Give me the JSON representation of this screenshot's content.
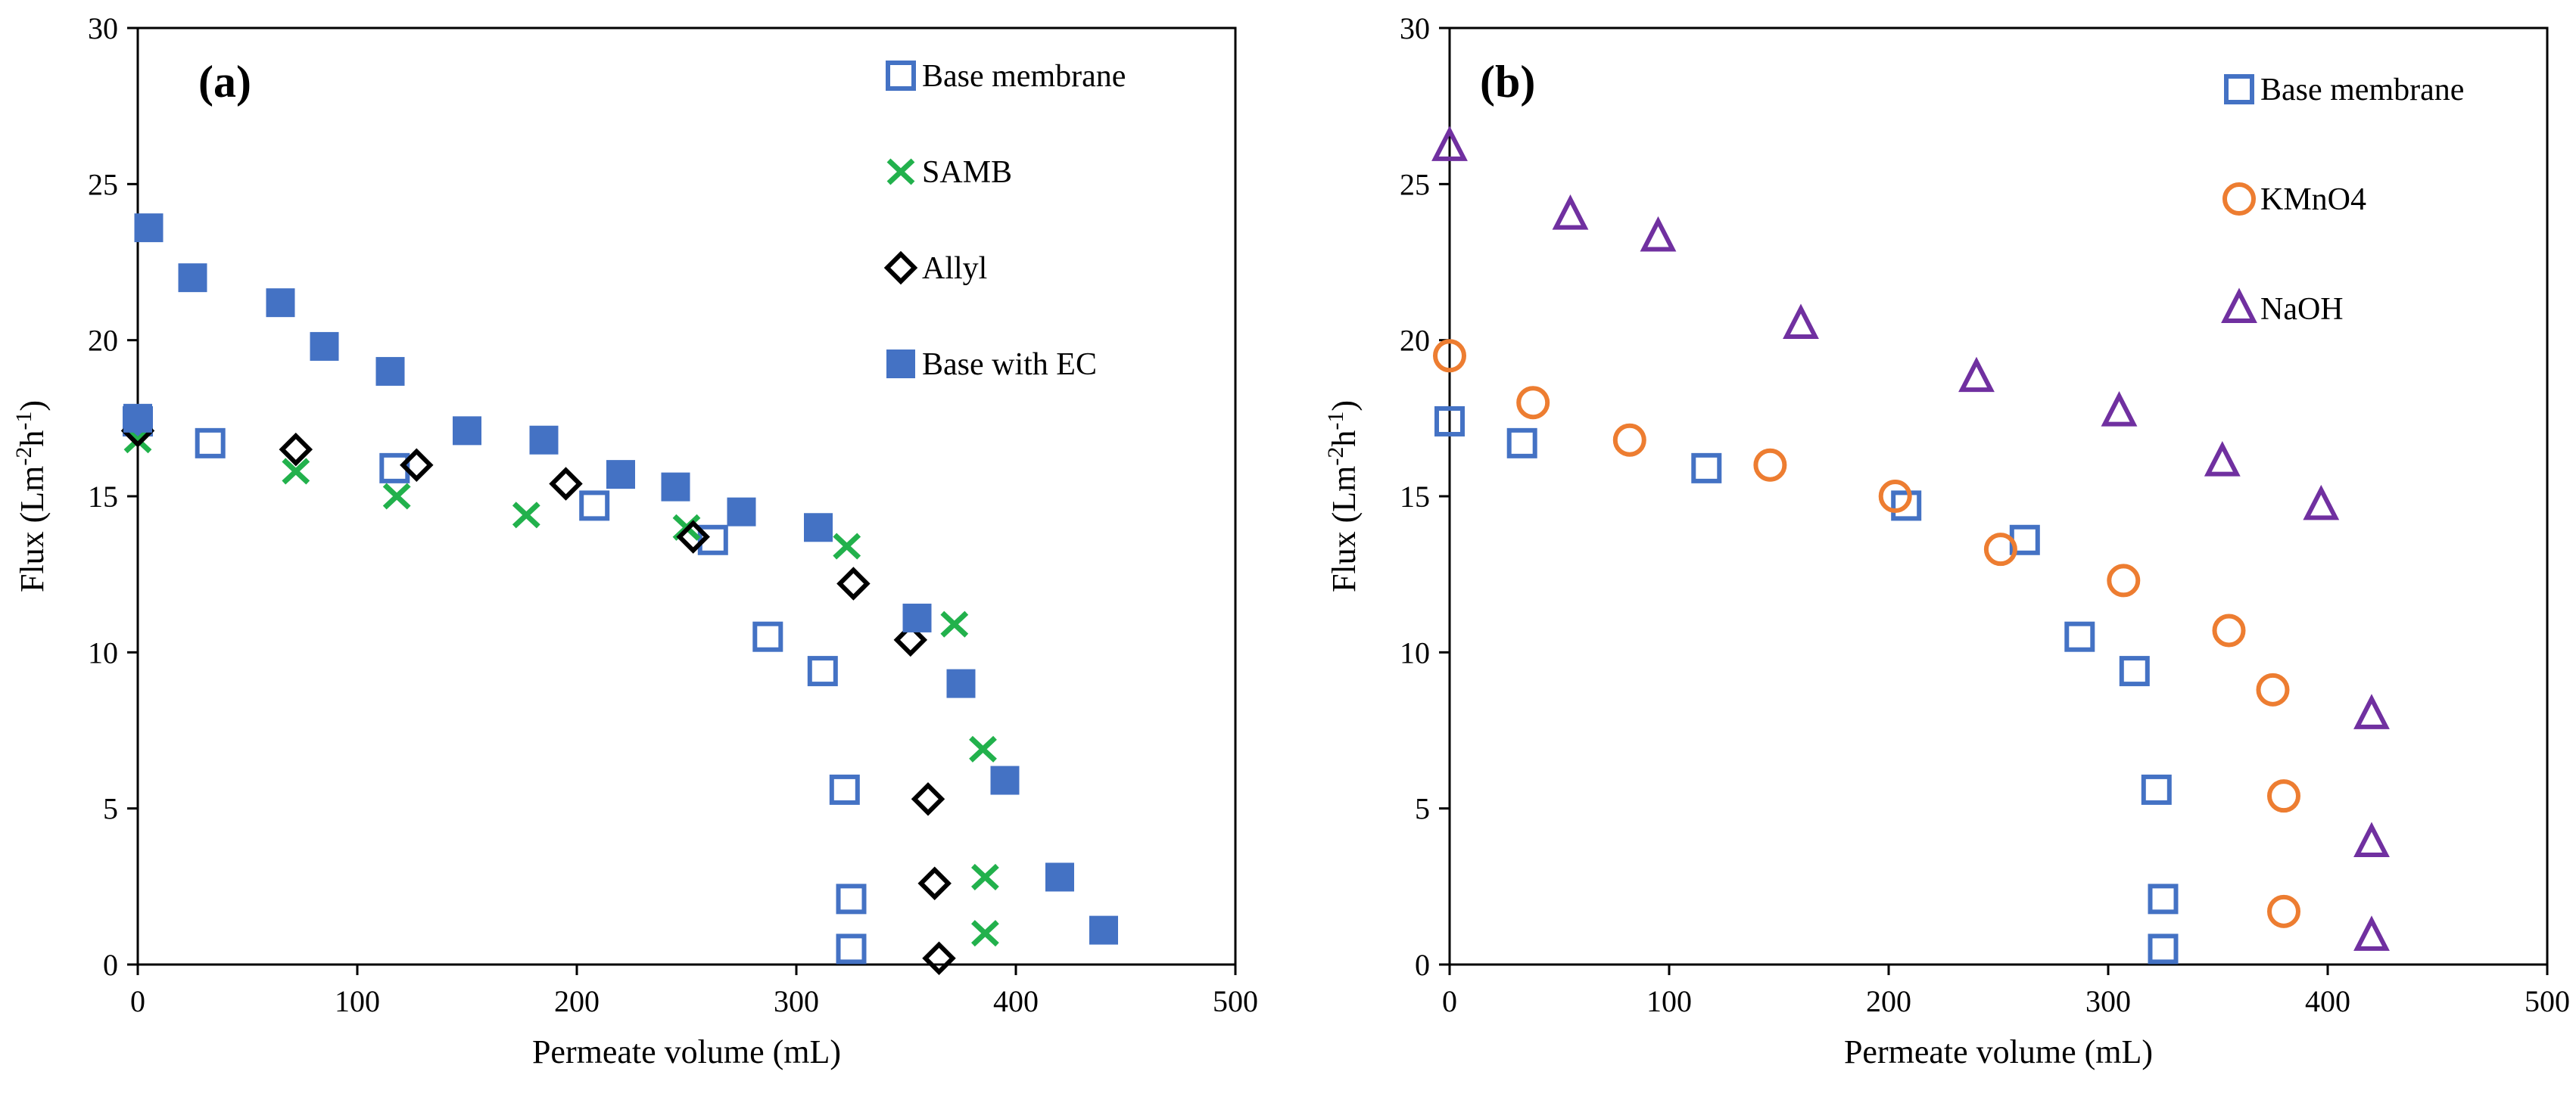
{
  "chart_data": [
    {
      "type": "scatter",
      "panel_label": "(a)",
      "xlabel": "Permeate volume (mL)",
      "ylabel": "Flux (Lm-2h-1)",
      "ylabel_parts": {
        "main": "Flux (Lm",
        "sup1": "-2",
        "mid": "h",
        "sup2": "-1",
        "end": ")"
      },
      "xlim": [
        0,
        500
      ],
      "ylim": [
        0,
        30
      ],
      "x_ticks": [
        0,
        100,
        200,
        300,
        400,
        500
      ],
      "y_ticks": [
        0,
        5,
        10,
        15,
        20,
        25,
        30
      ],
      "grid": false,
      "legend_position": "top-right",
      "series": [
        {
          "name": "Base membrane",
          "marker": "square-open",
          "color": "#4472C4",
          "points": [
            [
              0,
              17.4
            ],
            [
              33,
              16.7
            ],
            [
              117,
              15.9
            ],
            [
              208,
              14.7
            ],
            [
              262,
              13.6
            ],
            [
              287,
              10.5
            ],
            [
              312,
              9.4
            ],
            [
              322,
              5.6
            ],
            [
              325,
              2.1
            ],
            [
              325,
              0.5
            ]
          ]
        },
        {
          "name": "SAMB",
          "marker": "x",
          "color": "#22B14C",
          "points": [
            [
              0,
              16.8
            ],
            [
              72,
              15.8
            ],
            [
              118,
              15.0
            ],
            [
              177,
              14.4
            ],
            [
              250,
              14.0
            ],
            [
              323,
              13.4
            ],
            [
              372,
              10.9
            ],
            [
              385,
              6.9
            ],
            [
              386,
              2.8
            ],
            [
              386,
              1.0
            ]
          ]
        },
        {
          "name": "Allyl",
          "marker": "diamond-open",
          "color": "#000000",
          "points": [
            [
              0,
              17.1
            ],
            [
              72,
              16.5
            ],
            [
              127,
              16.0
            ],
            [
              195,
              15.4
            ],
            [
              253,
              13.7
            ],
            [
              326,
              12.2
            ],
            [
              352,
              10.4
            ],
            [
              360,
              5.3
            ],
            [
              363,
              2.6
            ],
            [
              365,
              0.2
            ]
          ]
        },
        {
          "name": "Base with EC",
          "marker": "square-filled",
          "color": "#4472C4",
          "points": [
            [
              0,
              17.5
            ],
            [
              5,
              23.6
            ],
            [
              25,
              22.0
            ],
            [
              65,
              21.2
            ],
            [
              85,
              19.8
            ],
            [
              115,
              19.0
            ],
            [
              150,
              17.1
            ],
            [
              185,
              16.8
            ],
            [
              220,
              15.7
            ],
            [
              245,
              15.3
            ],
            [
              275,
              14.5
            ],
            [
              310,
              14.0
            ],
            [
              355,
              11.1
            ],
            [
              375,
              9.0
            ],
            [
              395,
              5.9
            ],
            [
              420,
              2.8
            ],
            [
              440,
              1.1
            ]
          ]
        }
      ]
    },
    {
      "type": "scatter",
      "panel_label": "(b)",
      "xlabel": "Permeate volume (mL)",
      "ylabel": "Flux (Lm-2h-1)",
      "ylabel_parts": {
        "main": "Flux (Lm",
        "sup1": "-2",
        "mid": "h",
        "sup2": "-1",
        "end": ")"
      },
      "xlim": [
        0,
        500
      ],
      "ylim": [
        0,
        30
      ],
      "x_ticks": [
        0,
        100,
        200,
        300,
        400,
        500
      ],
      "y_ticks": [
        0,
        5,
        10,
        15,
        20,
        25,
        30
      ],
      "grid": false,
      "legend_position": "top-right",
      "series": [
        {
          "name": "Base membrane",
          "marker": "square-open",
          "color": "#4472C4",
          "points": [
            [
              0,
              17.4
            ],
            [
              33,
              16.7
            ],
            [
              117,
              15.9
            ],
            [
              208,
              14.7
            ],
            [
              262,
              13.6
            ],
            [
              287,
              10.5
            ],
            [
              312,
              9.4
            ],
            [
              322,
              5.6
            ],
            [
              325,
              2.1
            ],
            [
              325,
              0.5
            ]
          ]
        },
        {
          "name": "KMnO4",
          "marker": "circle-open",
          "color": "#ED7D31",
          "points": [
            [
              0,
              19.5
            ],
            [
              38,
              18.0
            ],
            [
              82,
              16.8
            ],
            [
              146,
              16.0
            ],
            [
              203,
              15.0
            ],
            [
              251,
              13.3
            ],
            [
              307,
              12.3
            ],
            [
              355,
              10.7
            ],
            [
              375,
              8.8
            ],
            [
              380,
              5.4
            ],
            [
              380,
              1.7
            ]
          ]
        },
        {
          "name": "NaOH",
          "marker": "triangle-open",
          "color": "#7030A0",
          "points": [
            [
              0,
              26.2
            ],
            [
              55,
              24.0
            ],
            [
              95,
              23.3
            ],
            [
              160,
              20.5
            ],
            [
              240,
              18.8
            ],
            [
              305,
              17.7
            ],
            [
              352,
              16.1
            ],
            [
              397,
              14.7
            ],
            [
              420,
              8.0
            ],
            [
              420,
              3.9
            ],
            [
              420,
              0.9
            ]
          ]
        }
      ]
    }
  ]
}
